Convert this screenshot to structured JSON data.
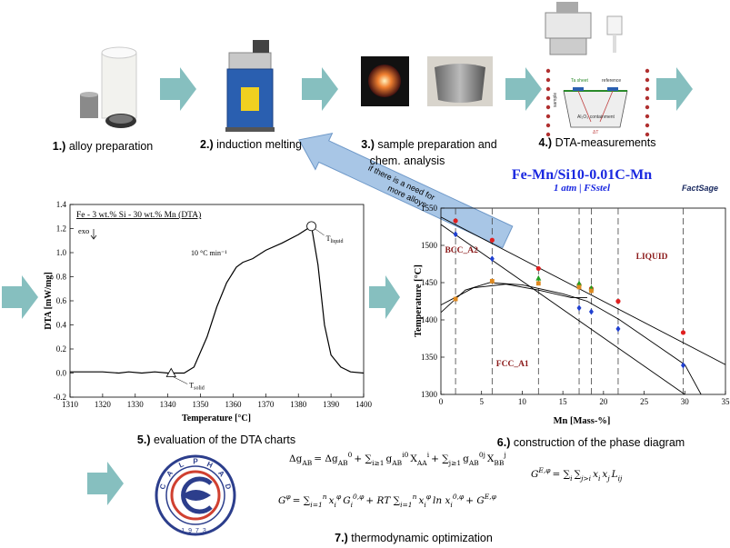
{
  "steps": [
    {
      "number": "1.)",
      "lines": [
        "alloy preparation"
      ]
    },
    {
      "number": "2.)",
      "lines": [
        "induction melting"
      ]
    },
    {
      "number": "3.)",
      "lines": [
        "sample preparation and",
        "chem. analysis"
      ]
    },
    {
      "number": "4.)",
      "lines": [
        "DTA-measurements"
      ]
    },
    {
      "number": "5.)",
      "lines": [
        "evaluation of the DTA charts"
      ]
    },
    {
      "number": "6.)",
      "lines": [
        "construction of the phase diagram"
      ]
    },
    {
      "number": "7.)",
      "lines": [
        "thermodynamic optimization"
      ]
    }
  ],
  "feedback_arrow": {
    "lines": [
      "if there is a need for",
      "more alloys"
    ]
  },
  "dta_schematic": {
    "labels": [
      "Ta sheet",
      "reference",
      "sample",
      "Al₂O₃ containment",
      "ΔT"
    ]
  },
  "calphad_logo": {
    "letters": [
      "C",
      "A",
      "L",
      "P",
      "H",
      "A",
      "D"
    ],
    "year": "1973"
  },
  "equations": [
    [
      "Δg",
      "AB",
      "= Δg",
      "AB",
      "0",
      "+ ∑",
      "i≥1",
      "g",
      "AB",
      "i0",
      "X",
      "AA",
      "i",
      "+ ∑",
      "j≥1",
      "g",
      "AB",
      "0j",
      "X",
      "BB",
      "j"
    ],
    [
      "G",
      "φ",
      "= ∑",
      "i=1",
      "n",
      "x",
      "i",
      "φ",
      "G",
      "i",
      "0,φ",
      "+ RT ∑",
      "i=1",
      "n",
      "x",
      "i",
      "φ",
      "ln x",
      "i",
      "0,φ",
      "+ G",
      "E,φ"
    ],
    [
      "G",
      "E,φ",
      "= ∑",
      "i",
      "∑",
      "j>i",
      "x",
      "i",
      "x",
      "j",
      "L",
      "ij"
    ]
  ],
  "chart_data": [
    {
      "type": "line",
      "title": "Fe - 3 wt.% Si - 30 wt.% Mn (DTA)",
      "x_label": "Temperature [°C]",
      "y_label": "DTA [mW/mg]",
      "exo": "exo",
      "rate_label": "10 °C min⁻¹",
      "solidus": {
        "base": "T",
        "sub": "solid",
        "x": 1341,
        "value": 0
      },
      "liquidus": {
        "base": "T",
        "sub": "liquid",
        "x": 1384,
        "value": 1.22
      },
      "xlim": [
        1310,
        1400
      ],
      "xticks": [
        1310,
        1320,
        1330,
        1340,
        1350,
        1360,
        1370,
        1380,
        1390,
        1400
      ],
      "ylim": [
        -0.2,
        1.4
      ],
      "yticks": [
        -0.2,
        {
          "value": 0,
          "label": "0.0"
        },
        0.2,
        0.4,
        0.6,
        0.8,
        {
          "value": 1,
          "label": "1.0"
        },
        1.2,
        1.4
      ],
      "color": "#000000",
      "x": [
        1310,
        1320,
        1325,
        1328,
        1332,
        1336,
        1340,
        1345,
        1348,
        1352,
        1355,
        1358,
        1361,
        1363,
        1366,
        1370,
        1375,
        1380,
        1384,
        1386,
        1388,
        1390,
        1393,
        1396,
        1400
      ],
      "values": [
        0.01,
        0.01,
        0,
        0.01,
        0,
        0.01,
        0,
        0,
        0.05,
        0.3,
        0.55,
        0.75,
        0.88,
        0.92,
        0.95,
        1.02,
        1.08,
        1.15,
        1.22,
        0.9,
        0.4,
        0.15,
        0.05,
        0.01,
        0
      ]
    },
    {
      "type": "scatter",
      "title": "Fe-Mn/Si10-0.01C-Mn",
      "subtitle": "1 atm | FSstel",
      "logo": "FactSage",
      "x_label": "Mn [Mass-%]",
      "y_label": "Temperature [°C]",
      "xlim": [
        0,
        35
      ],
      "xticks": [
        0,
        5,
        10,
        15,
        20,
        25,
        30,
        35
      ],
      "ylim": [
        1300,
        1550
      ],
      "yticks": [
        1300,
        1350,
        1400,
        1450,
        1500,
        1550
      ],
      "region_labels": [
        "BCC_A2",
        "LIQUID",
        "FCC_A1"
      ],
      "dashed_x": [
        1.8,
        6.3,
        12,
        17,
        18.5,
        21.8,
        29.8
      ],
      "phase_boundaries": [
        {
          "x": [
            0,
            35
          ],
          "values": [
            1538,
            1340
          ]
        },
        {
          "x": [
            0,
            30
          ],
          "values": [
            1528,
            1300
          ]
        },
        {
          "x": [
            0,
            3,
            6,
            10,
            15,
            18,
            22,
            30,
            32
          ],
          "values": [
            1410,
            1440,
            1450,
            1447,
            1435,
            1425,
            1400,
            1340,
            1300
          ]
        },
        {
          "x": [
            0,
            4,
            8,
            12,
            16,
            18
          ],
          "values": [
            1420,
            1443,
            1448,
            1440,
            1430,
            1430
          ]
        }
      ],
      "series": [
        {
          "color": "#e02020",
          "marker": "circle",
          "x": [
            1.8,
            6.3,
            12,
            17,
            18.5,
            21.8,
            29.8
          ],
          "values": [
            1533,
            1507,
            1469,
            1447,
            1442,
            1425,
            1383
          ]
        },
        {
          "color": "#2040d0",
          "marker": "diamond",
          "x": [
            1.8,
            6.3,
            17,
            18.5,
            21.8,
            29.8
          ],
          "values": [
            1515,
            1482,
            1416,
            1411,
            1388,
            1339
          ]
        },
        {
          "color": "#20a020",
          "marker": "triangle",
          "x": [
            12,
            17,
            18.5
          ],
          "values": [
            1456,
            1449,
            1443
          ]
        },
        {
          "color": "#e08a20",
          "marker": "square",
          "x": [
            1.8,
            6.3,
            12,
            17,
            18.5
          ],
          "values": [
            1428,
            1452,
            1449,
            1444,
            1439
          ]
        }
      ]
    }
  ]
}
